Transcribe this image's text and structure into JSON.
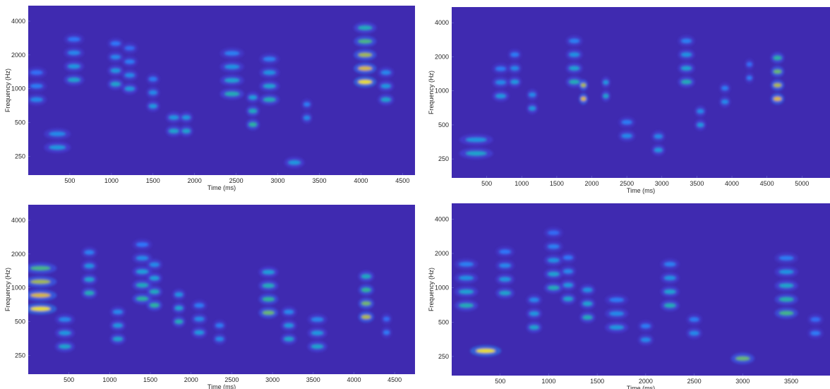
{
  "colors": {
    "background": "#ffffff",
    "colormap": [
      "#3e26a8",
      "#4745e2",
      "#2e7afe",
      "#16a7d8",
      "#2dbc94",
      "#a4be4e",
      "#e8bd3a",
      "#f9fb14"
    ],
    "axis_text": "#262626"
  },
  "chart_data": [
    {
      "type": "heatmap",
      "subtype": "spectrogram",
      "xlabel": "Time (ms)",
      "ylabel": "Frequency (Hz)",
      "xlim": [
        0,
        4650
      ],
      "yscale": "log",
      "ylim": [
        170,
        5500
      ],
      "xticks": [
        500,
        1000,
        1500,
        2000,
        2500,
        3000,
        3500,
        4000,
        4500
      ],
      "yticks": [
        250,
        500,
        1000,
        2000,
        4000
      ],
      "grid": false,
      "events": [
        {
          "t": 100,
          "dur": 150,
          "f": 800,
          "n": 3,
          "a": 0.35
        },
        {
          "t": 350,
          "dur": 200,
          "f": 300,
          "n": 2,
          "a": 0.4
        },
        {
          "t": 550,
          "dur": 150,
          "f": 1200,
          "n": 4,
          "a": 0.45
        },
        {
          "t": 1050,
          "dur": 120,
          "f": 1100,
          "n": 4,
          "a": 0.45
        },
        {
          "t": 1220,
          "dur": 120,
          "f": 1000,
          "n": 4,
          "a": 0.4
        },
        {
          "t": 1500,
          "dur": 100,
          "f": 700,
          "n": 3,
          "a": 0.4
        },
        {
          "t": 1750,
          "dur": 120,
          "f": 420,
          "n": 2,
          "a": 0.45
        },
        {
          "t": 1900,
          "dur": 100,
          "f": 420,
          "n": 2,
          "a": 0.45
        },
        {
          "t": 2450,
          "dur": 180,
          "f": 900,
          "n": 4,
          "a": 0.5
        },
        {
          "t": 2700,
          "dur": 100,
          "f": 480,
          "n": 3,
          "a": 0.55
        },
        {
          "t": 2900,
          "dur": 150,
          "f": 800,
          "n": 4,
          "a": 0.5
        },
        {
          "t": 3200,
          "dur": 150,
          "f": 220,
          "n": 1,
          "a": 0.4
        },
        {
          "t": 3350,
          "dur": 80,
          "f": 550,
          "n": 2,
          "a": 0.35
        },
        {
          "t": 4050,
          "dur": 170,
          "f": 1150,
          "n": 5,
          "a": 0.95
        },
        {
          "t": 4300,
          "dur": 120,
          "f": 800,
          "n": 3,
          "a": 0.45
        }
      ]
    },
    {
      "type": "heatmap",
      "subtype": "spectrogram",
      "xlabel": "Time (ms)",
      "ylabel": "Frequency (Hz)",
      "xlim": [
        0,
        5400
      ],
      "yscale": "log",
      "ylim": [
        170,
        5500
      ],
      "xticks": [
        500,
        1000,
        1500,
        2000,
        2500,
        3000,
        3500,
        4000,
        4500,
        5000
      ],
      "yticks": [
        250,
        500,
        1000,
        2000,
        4000
      ],
      "grid": false,
      "events": [
        {
          "t": 350,
          "dur": 300,
          "f": 280,
          "n": 2,
          "a": 0.45
        },
        {
          "t": 700,
          "dur": 150,
          "f": 900,
          "n": 3,
          "a": 0.4
        },
        {
          "t": 900,
          "dur": 120,
          "f": 1200,
          "n": 3,
          "a": 0.4
        },
        {
          "t": 1150,
          "dur": 100,
          "f": 700,
          "n": 2,
          "a": 0.4
        },
        {
          "t": 1750,
          "dur": 150,
          "f": 1200,
          "n": 4,
          "a": 0.5
        },
        {
          "t": 1880,
          "dur": 80,
          "f": 850,
          "n": 2,
          "a": 0.85
        },
        {
          "t": 2200,
          "dur": 80,
          "f": 900,
          "n": 2,
          "a": 0.45
        },
        {
          "t": 2500,
          "dur": 150,
          "f": 400,
          "n": 2,
          "a": 0.35
        },
        {
          "t": 2950,
          "dur": 120,
          "f": 300,
          "n": 2,
          "a": 0.4
        },
        {
          "t": 3350,
          "dur": 150,
          "f": 1200,
          "n": 4,
          "a": 0.5
        },
        {
          "t": 3550,
          "dur": 100,
          "f": 500,
          "n": 2,
          "a": 0.4
        },
        {
          "t": 3900,
          "dur": 100,
          "f": 800,
          "n": 2,
          "a": 0.35
        },
        {
          "t": 4250,
          "dur": 80,
          "f": 1300,
          "n": 2,
          "a": 0.3
        },
        {
          "t": 4650,
          "dur": 120,
          "f": 850,
          "n": 4,
          "a": 0.85
        }
      ]
    },
    {
      "type": "heatmap",
      "subtype": "spectrogram",
      "xlabel": "Time (ms)",
      "ylabel": "Frequency (Hz)",
      "xlim": [
        0,
        4750
      ],
      "yscale": "log",
      "ylim": [
        170,
        5500
      ],
      "xticks": [
        500,
        1000,
        1500,
        2000,
        2500,
        3000,
        3500,
        4000,
        4500
      ],
      "yticks": [
        250,
        500,
        1000,
        2000,
        4000
      ],
      "grid": false,
      "events": [
        {
          "t": 150,
          "dur": 250,
          "f": 650,
          "n": 4,
          "a": 0.95
        },
        {
          "t": 450,
          "dur": 150,
          "f": 300,
          "n": 3,
          "a": 0.45
        },
        {
          "t": 750,
          "dur": 120,
          "f": 900,
          "n": 4,
          "a": 0.5
        },
        {
          "t": 1100,
          "dur": 120,
          "f": 350,
          "n": 3,
          "a": 0.45
        },
        {
          "t": 1400,
          "dur": 150,
          "f": 800,
          "n": 5,
          "a": 0.55
        },
        {
          "t": 1550,
          "dur": 120,
          "f": 700,
          "n": 4,
          "a": 0.55
        },
        {
          "t": 1850,
          "dur": 100,
          "f": 500,
          "n": 3,
          "a": 0.5
        },
        {
          "t": 2100,
          "dur": 120,
          "f": 400,
          "n": 3,
          "a": 0.4
        },
        {
          "t": 2350,
          "dur": 100,
          "f": 350,
          "n": 2,
          "a": 0.35
        },
        {
          "t": 2950,
          "dur": 150,
          "f": 600,
          "n": 4,
          "a": 0.65
        },
        {
          "t": 3200,
          "dur": 120,
          "f": 350,
          "n": 3,
          "a": 0.45
        },
        {
          "t": 3550,
          "dur": 150,
          "f": 300,
          "n": 3,
          "a": 0.45
        },
        {
          "t": 4150,
          "dur": 120,
          "f": 550,
          "n": 4,
          "a": 0.75
        },
        {
          "t": 4400,
          "dur": 80,
          "f": 400,
          "n": 2,
          "a": 0.3
        }
      ]
    },
    {
      "type": "heatmap",
      "subtype": "spectrogram",
      "xlabel": "Time (ms)",
      "ylabel": "Frequency (Hz)",
      "xlim": [
        0,
        3900
      ],
      "yscale": "log",
      "ylim": [
        170,
        5500
      ],
      "xticks": [
        500,
        1000,
        1500,
        2000,
        2500,
        3000,
        3500
      ],
      "yticks": [
        250,
        500,
        1000,
        2000,
        4000
      ],
      "grid": false,
      "events": [
        {
          "t": 150,
          "dur": 150,
          "f": 700,
          "n": 4,
          "a": 0.5
        },
        {
          "t": 350,
          "dur": 200,
          "f": 280,
          "n": 1,
          "a": 0.95
        },
        {
          "t": 550,
          "dur": 120,
          "f": 900,
          "n": 4,
          "a": 0.45
        },
        {
          "t": 850,
          "dur": 100,
          "f": 450,
          "n": 3,
          "a": 0.45
        },
        {
          "t": 1050,
          "dur": 120,
          "f": 1000,
          "n": 5,
          "a": 0.5
        },
        {
          "t": 1200,
          "dur": 100,
          "f": 800,
          "n": 4,
          "a": 0.45
        },
        {
          "t": 1400,
          "dur": 100,
          "f": 550,
          "n": 3,
          "a": 0.5
        },
        {
          "t": 1700,
          "dur": 150,
          "f": 450,
          "n": 3,
          "a": 0.4
        },
        {
          "t": 2000,
          "dur": 100,
          "f": 350,
          "n": 2,
          "a": 0.35
        },
        {
          "t": 2250,
          "dur": 120,
          "f": 700,
          "n": 4,
          "a": 0.5
        },
        {
          "t": 2500,
          "dur": 100,
          "f": 400,
          "n": 2,
          "a": 0.35
        },
        {
          "t": 3000,
          "dur": 150,
          "f": 240,
          "n": 1,
          "a": 0.65
        },
        {
          "t": 3450,
          "dur": 150,
          "f": 600,
          "n": 5,
          "a": 0.6
        },
        {
          "t": 3750,
          "dur": 100,
          "f": 400,
          "n": 2,
          "a": 0.3
        }
      ]
    }
  ]
}
